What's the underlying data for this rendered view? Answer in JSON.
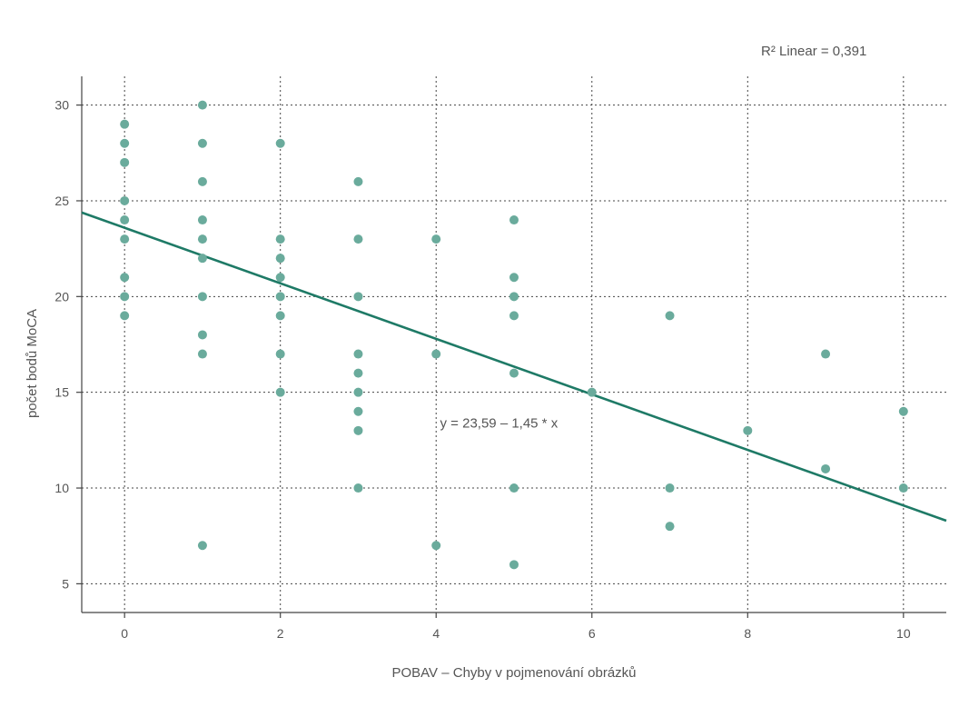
{
  "chart_data": {
    "type": "scatter",
    "xlabel": "POBAV – Chyby v pojmenování obrázků",
    "ylabel": "počet bodů MoCA",
    "xlim": [
      -0.55,
      10.55
    ],
    "ylim": [
      3.5,
      31.5
    ],
    "x_ticks": [
      0,
      2,
      4,
      6,
      8,
      10
    ],
    "y_ticks": [
      5,
      10,
      15,
      20,
      25,
      30
    ],
    "grid": true,
    "r2_label": "R² Linear = 0,391",
    "equation_label": "y = 23,59 – 1,45 * x",
    "equation_label_position": [
      4.05,
      13.4
    ],
    "fit_line": {
      "intercept": 23.59,
      "slope": -1.45
    },
    "colors": {
      "points": "#6aab9c",
      "fit_line": "#1e7a66",
      "grid": "#444444"
    },
    "points": [
      {
        "x": 0,
        "y": 29
      },
      {
        "x": 0,
        "y": 28
      },
      {
        "x": 0,
        "y": 27
      },
      {
        "x": 0,
        "y": 25
      },
      {
        "x": 0,
        "y": 24
      },
      {
        "x": 0,
        "y": 23
      },
      {
        "x": 0,
        "y": 21
      },
      {
        "x": 0,
        "y": 20
      },
      {
        "x": 0,
        "y": 19
      },
      {
        "x": 1,
        "y": 30
      },
      {
        "x": 1,
        "y": 28
      },
      {
        "x": 1,
        "y": 26
      },
      {
        "x": 1,
        "y": 24
      },
      {
        "x": 1,
        "y": 23
      },
      {
        "x": 1,
        "y": 22
      },
      {
        "x": 1,
        "y": 20
      },
      {
        "x": 1,
        "y": 18
      },
      {
        "x": 1,
        "y": 17
      },
      {
        "x": 1,
        "y": 7
      },
      {
        "x": 2,
        "y": 28
      },
      {
        "x": 2,
        "y": 23
      },
      {
        "x": 2,
        "y": 22
      },
      {
        "x": 2,
        "y": 21
      },
      {
        "x": 2,
        "y": 20
      },
      {
        "x": 2,
        "y": 19
      },
      {
        "x": 2,
        "y": 17
      },
      {
        "x": 2,
        "y": 15
      },
      {
        "x": 3,
        "y": 26
      },
      {
        "x": 3,
        "y": 23
      },
      {
        "x": 3,
        "y": 20
      },
      {
        "x": 3,
        "y": 17
      },
      {
        "x": 3,
        "y": 16
      },
      {
        "x": 3,
        "y": 15
      },
      {
        "x": 3,
        "y": 14
      },
      {
        "x": 3,
        "y": 13
      },
      {
        "x": 3,
        "y": 10
      },
      {
        "x": 4,
        "y": 23
      },
      {
        "x": 4,
        "y": 17
      },
      {
        "x": 4,
        "y": 7
      },
      {
        "x": 5,
        "y": 24
      },
      {
        "x": 5,
        "y": 21
      },
      {
        "x": 5,
        "y": 20
      },
      {
        "x": 5,
        "y": 19
      },
      {
        "x": 5,
        "y": 16
      },
      {
        "x": 5,
        "y": 10
      },
      {
        "x": 5,
        "y": 6
      },
      {
        "x": 6,
        "y": 15
      },
      {
        "x": 7,
        "y": 19
      },
      {
        "x": 7,
        "y": 10
      },
      {
        "x": 7,
        "y": 8
      },
      {
        "x": 8,
        "y": 13
      },
      {
        "x": 9,
        "y": 17
      },
      {
        "x": 9,
        "y": 11
      },
      {
        "x": 10,
        "y": 14
      },
      {
        "x": 10,
        "y": 10
      }
    ]
  }
}
